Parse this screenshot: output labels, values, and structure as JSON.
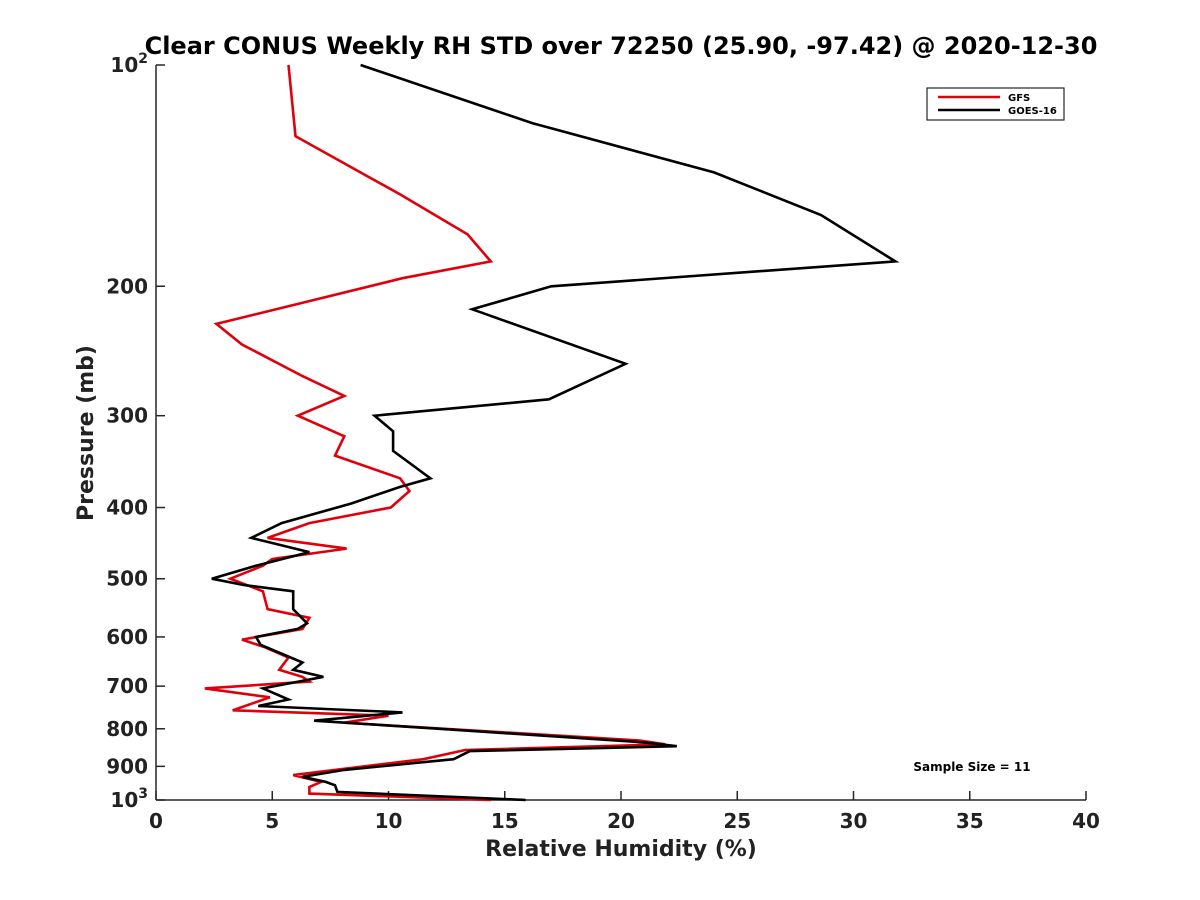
{
  "chart_data": {
    "type": "line",
    "title": "Clear CONUS Weekly RH STD over 72250 (25.90, -97.42) @ 2020-12-30",
    "xlabel": "Relative Humidity (%)",
    "ylabel": "Pressure (mb)",
    "xlim": [
      0,
      40
    ],
    "ylim": [
      100,
      1000
    ],
    "y_scale": "log",
    "y_reversed": true,
    "grid": false,
    "legend_position": "top-right",
    "annotation": "Sample Size = 11",
    "x_ticks": [
      "0",
      "5",
      "10",
      "15",
      "20",
      "25",
      "30",
      "35",
      "40"
    ],
    "y_ticks": [
      {
        "value": 100,
        "base": "10",
        "exp": "2"
      },
      {
        "value": 200,
        "label": "200"
      },
      {
        "value": 300,
        "label": "300"
      },
      {
        "value": 400,
        "label": "400"
      },
      {
        "value": 500,
        "label": "500"
      },
      {
        "value": 600,
        "label": "600"
      },
      {
        "value": 700,
        "label": "700"
      },
      {
        "value": 800,
        "label": "800"
      },
      {
        "value": 900,
        "label": "900"
      },
      {
        "value": 1000,
        "base": "10",
        "exp": "3"
      }
    ],
    "series": [
      {
        "name": "GFS",
        "color": "#e0000b",
        "points": [
          [
            5.7,
            100
          ],
          [
            6.0,
            125
          ],
          [
            10.5,
            150
          ],
          [
            13.4,
            170
          ],
          [
            14.4,
            185
          ],
          [
            10.6,
            195
          ],
          [
            2.6,
            225
          ],
          [
            3.7,
            240
          ],
          [
            6.3,
            265
          ],
          [
            8.1,
            282
          ],
          [
            6.1,
            300
          ],
          [
            8.1,
            320
          ],
          [
            7.7,
            340
          ],
          [
            10.5,
            365
          ],
          [
            10.9,
            380
          ],
          [
            10.1,
            400
          ],
          [
            6.6,
            420
          ],
          [
            4.8,
            440
          ],
          [
            8.2,
            455
          ],
          [
            5.0,
            470
          ],
          [
            4.6,
            480
          ],
          [
            3.2,
            500
          ],
          [
            4.6,
            520
          ],
          [
            4.8,
            550
          ],
          [
            6.6,
            565
          ],
          [
            6.3,
            585
          ],
          [
            3.7,
            605
          ],
          [
            4.7,
            620
          ],
          [
            5.7,
            640
          ],
          [
            5.3,
            665
          ],
          [
            6.3,
            680
          ],
          [
            6.6,
            690
          ],
          [
            2.1,
            705
          ],
          [
            4.9,
            725
          ],
          [
            3.3,
            755
          ],
          [
            10.0,
            768
          ],
          [
            8.1,
            785
          ],
          [
            11.0,
            795
          ],
          [
            20.8,
            830
          ],
          [
            21.9,
            840
          ],
          [
            13.3,
            855
          ],
          [
            11.5,
            880
          ],
          [
            7.7,
            910
          ],
          [
            5.9,
            925
          ],
          [
            7.1,
            945
          ],
          [
            6.6,
            960
          ],
          [
            6.6,
            980
          ],
          [
            14.4,
            1000
          ]
        ]
      },
      {
        "name": "GOES-16",
        "color": "#000000",
        "points": [
          [
            8.8,
            100
          ],
          [
            16.2,
            120
          ],
          [
            24.0,
            140
          ],
          [
            28.6,
            160
          ],
          [
            31.8,
            185
          ],
          [
            17.0,
            200
          ],
          [
            13.6,
            215
          ],
          [
            20.2,
            255
          ],
          [
            16.9,
            285
          ],
          [
            9.4,
            300
          ],
          [
            10.2,
            315
          ],
          [
            10.2,
            335
          ],
          [
            11.8,
            365
          ],
          [
            10.5,
            375
          ],
          [
            8.4,
            395
          ],
          [
            5.4,
            420
          ],
          [
            4.1,
            440
          ],
          [
            6.6,
            460
          ],
          [
            4.3,
            480
          ],
          [
            2.4,
            500
          ],
          [
            3.8,
            510
          ],
          [
            5.9,
            520
          ],
          [
            5.9,
            550
          ],
          [
            6.5,
            575
          ],
          [
            6.1,
            585
          ],
          [
            4.3,
            600
          ],
          [
            4.5,
            615
          ],
          [
            6.3,
            650
          ],
          [
            5.9,
            665
          ],
          [
            7.2,
            680
          ],
          [
            4.6,
            705
          ],
          [
            5.7,
            730
          ],
          [
            4.4,
            745
          ],
          [
            10.6,
            760
          ],
          [
            6.8,
            780
          ],
          [
            12.2,
            800
          ],
          [
            21.0,
            835
          ],
          [
            22.4,
            845
          ],
          [
            13.5,
            858
          ],
          [
            12.8,
            880
          ],
          [
            8.1,
            910
          ],
          [
            6.3,
            930
          ],
          [
            7.3,
            945
          ],
          [
            7.7,
            955
          ],
          [
            7.8,
            975
          ],
          [
            15.9,
            1000
          ]
        ]
      }
    ]
  }
}
